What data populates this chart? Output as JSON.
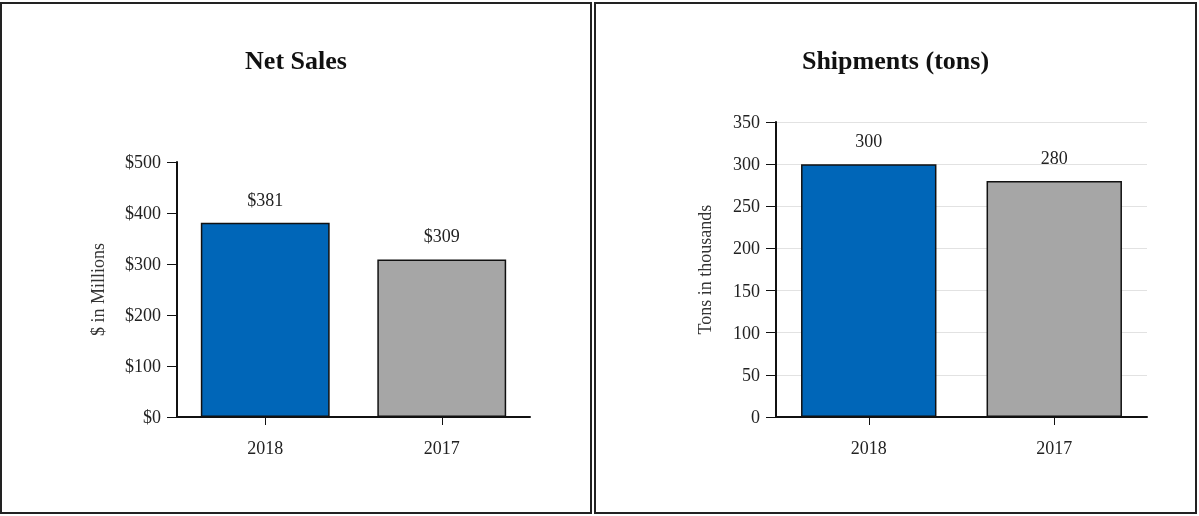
{
  "chart_data": [
    {
      "type": "bar",
      "title": "Net Sales",
      "ylabel": "$ in Millions",
      "categories": [
        "2018",
        "2017"
      ],
      "values": [
        381,
        309
      ],
      "colors": [
        "#0066b8",
        "#a6a6a6"
      ],
      "value_labels": [
        "$381",
        "$309"
      ],
      "ylim": [
        0,
        500
      ],
      "yticks": [
        {
          "value": 0,
          "label": "$0"
        },
        {
          "value": 100,
          "label": "$100"
        },
        {
          "value": 200,
          "label": "$200"
        },
        {
          "value": 300,
          "label": "$300"
        },
        {
          "value": 400,
          "label": "$400"
        },
        {
          "value": 500,
          "label": "$500"
        }
      ],
      "grid": false
    },
    {
      "type": "bar",
      "title": "Shipments (tons)",
      "ylabel": "Tons in thousands",
      "categories": [
        "2018",
        "2017"
      ],
      "values": [
        300,
        280
      ],
      "colors": [
        "#0066b8",
        "#a6a6a6"
      ],
      "data_labels": true,
      "ylim": [
        0,
        350
      ],
      "yticks": [
        0,
        50,
        100,
        150,
        200,
        250,
        300,
        350
      ],
      "grid": "y"
    }
  ]
}
